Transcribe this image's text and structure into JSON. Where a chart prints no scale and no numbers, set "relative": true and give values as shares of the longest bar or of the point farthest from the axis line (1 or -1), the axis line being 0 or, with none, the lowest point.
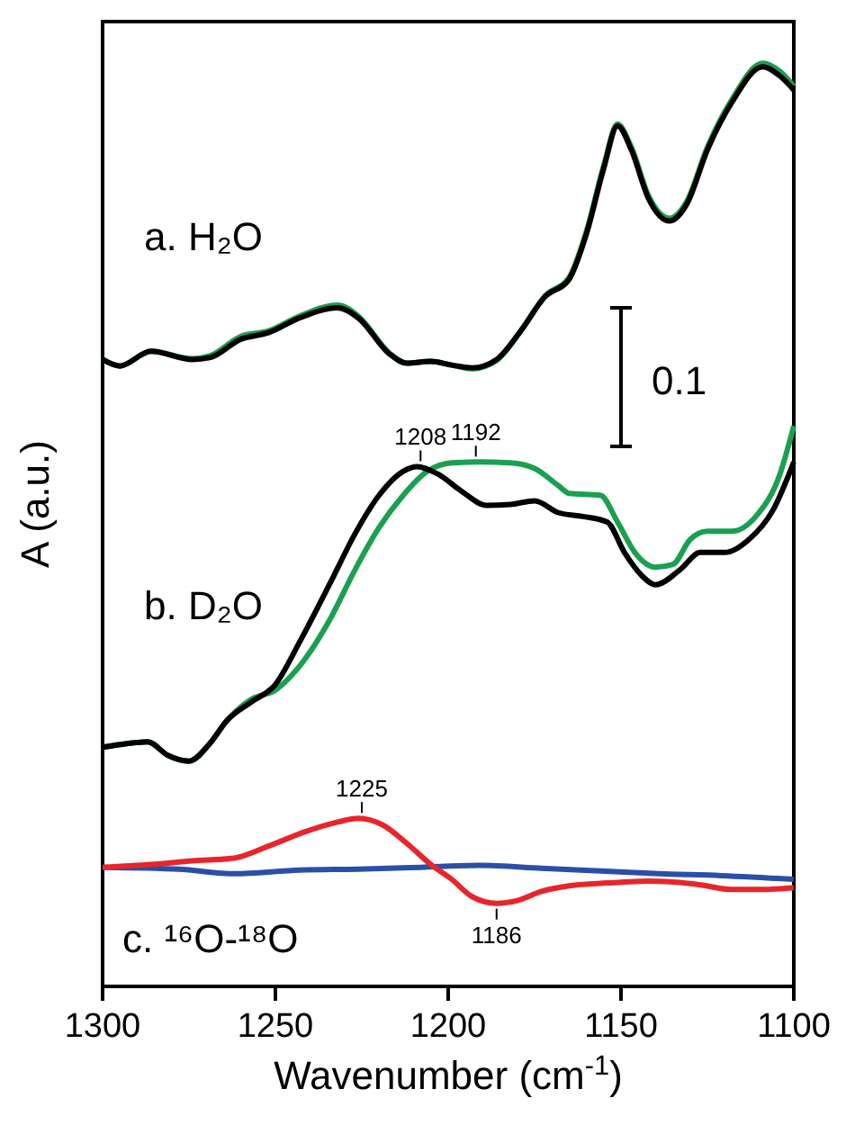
{
  "chart_data": {
    "type": "line",
    "relative": true,
    "xlabel": "Wavenumber (cm$^{-1}$)",
    "ylabel": "A (a.u.)",
    "xlim": [
      1300,
      1100
    ],
    "xticks": [
      1300,
      1250,
      1200,
      1150,
      1100
    ],
    "grid": false,
    "marker": "none",
    "line_style": "solid",
    "annotations": [
      "a. H₂O",
      "b. D₂O",
      "c. ¹⁶O-¹⁸O",
      "0.1",
      {
        "text": "1208",
        "x": 1208,
        "y": 0.563
      },
      {
        "text": "1192",
        "x": 1192,
        "y": 0.568
      },
      {
        "text": "1225",
        "x": 1225,
        "y": 0.182
      },
      {
        "text": "1186",
        "x": 1186,
        "y": 0.09
      }
    ],
    "series": [
      {
        "color": "#1aa050",
        "x": [
          1300,
          1295,
          1286,
          1274,
          1269,
          1260,
          1252,
          1243,
          1232,
          1226,
          1217,
          1212,
          1205,
          1199,
          1193,
          1186,
          1179,
          1172,
          1165,
          1160,
          1155,
          1151,
          1147,
          1142,
          1136,
          1131,
          1125,
          1118,
          1109,
          1104,
          1100
        ],
        "values": [
          0.679,
          0.672,
          0.688,
          0.68,
          0.683,
          0.704,
          0.71,
          0.726,
          0.738,
          0.726,
          0.686,
          0.675,
          0.677,
          0.673,
          0.669,
          0.678,
          0.71,
          0.748,
          0.768,
          0.818,
          0.889,
          0.934,
          0.909,
          0.856,
          0.832,
          0.85,
          0.909,
          0.96,
          1.0,
          0.991,
          0.975
        ]
      },
      {
        "color": "#000000",
        "x": [
          1300,
          1295,
          1286,
          1274,
          1269,
          1260,
          1252,
          1243,
          1232,
          1226,
          1217,
          1212,
          1205,
          1199,
          1193,
          1186,
          1179,
          1172,
          1165,
          1160,
          1155,
          1151,
          1147,
          1142,
          1136,
          1131,
          1125,
          1118,
          1109,
          1104,
          1100
        ],
        "values": [
          0.679,
          0.672,
          0.688,
          0.679,
          0.681,
          0.701,
          0.708,
          0.724,
          0.735,
          0.724,
          0.685,
          0.675,
          0.677,
          0.673,
          0.67,
          0.679,
          0.71,
          0.747,
          0.766,
          0.815,
          0.886,
          0.932,
          0.906,
          0.853,
          0.829,
          0.847,
          0.906,
          0.957,
          0.996,
          0.986,
          0.971
        ]
      },
      {
        "color": "#1aa050",
        "x": [
          1300,
          1293,
          1287,
          1281,
          1275,
          1269,
          1264,
          1257,
          1250,
          1243,
          1234,
          1227,
          1220,
          1213,
          1206,
          1199,
          1191,
          1182,
          1175,
          1168,
          1165,
          1156,
          1151,
          1146,
          1140,
          1135,
          1130,
          1125,
          1118,
          1111,
          1104,
          1100
        ],
        "values": [
          0.259,
          0.263,
          0.265,
          0.25,
          0.244,
          0.263,
          0.288,
          0.311,
          0.321,
          0.347,
          0.399,
          0.451,
          0.497,
          0.532,
          0.558,
          0.567,
          0.568,
          0.567,
          0.561,
          0.542,
          0.534,
          0.532,
          0.503,
          0.47,
          0.454,
          0.457,
          0.484,
          0.493,
          0.493,
          0.509,
          0.555,
          0.607
        ]
      },
      {
        "color": "#000000",
        "x": [
          1300,
          1293,
          1287,
          1281,
          1275,
          1269,
          1264,
          1257,
          1250,
          1243,
          1234,
          1227,
          1220,
          1213,
          1209,
          1203,
          1196,
          1189,
          1182,
          1175,
          1168,
          1161,
          1154,
          1149,
          1144,
          1140,
          1133,
          1127,
          1120,
          1113,
          1106,
          1100
        ],
        "values": [
          0.259,
          0.263,
          0.265,
          0.25,
          0.244,
          0.263,
          0.288,
          0.308,
          0.327,
          0.373,
          0.438,
          0.49,
          0.532,
          0.558,
          0.563,
          0.555,
          0.536,
          0.521,
          0.522,
          0.526,
          0.513,
          0.509,
          0.503,
          0.47,
          0.445,
          0.435,
          0.451,
          0.47,
          0.47,
          0.484,
          0.516,
          0.568
        ]
      },
      {
        "color": "#2a4fa8",
        "x": [
          1300,
          1278,
          1262,
          1243,
          1226,
          1208,
          1191,
          1173,
          1156,
          1139,
          1121,
          1100
        ],
        "values": [
          0.129,
          0.127,
          0.122,
          0.126,
          0.127,
          0.129,
          0.131,
          0.128,
          0.125,
          0.122,
          0.12,
          0.116
        ]
      },
      {
        "color": "#e8252b",
        "x": [
          1300,
          1286,
          1274,
          1262,
          1252,
          1241,
          1232,
          1226,
          1219,
          1212,
          1205,
          1199,
          1193,
          1186,
          1180,
          1173,
          1165,
          1154,
          1142,
          1135,
          1127,
          1118,
          1109,
          1100
        ],
        "values": [
          0.129,
          0.132,
          0.136,
          0.139,
          0.152,
          0.168,
          0.178,
          0.182,
          0.175,
          0.155,
          0.132,
          0.116,
          0.097,
          0.09,
          0.093,
          0.103,
          0.109,
          0.112,
          0.114,
          0.113,
          0.11,
          0.105,
          0.105,
          0.107
        ]
      }
    ]
  }
}
